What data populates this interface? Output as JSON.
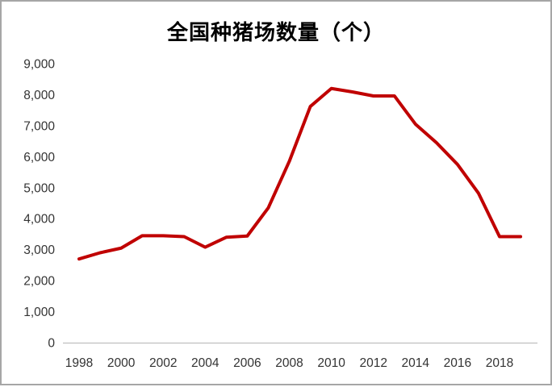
{
  "chart_data": {
    "type": "line",
    "title": "全国种猪场数量（个）",
    "x": [
      1998,
      1999,
      2000,
      2001,
      2002,
      2003,
      2004,
      2005,
      2006,
      2007,
      2008,
      2009,
      2010,
      2011,
      2012,
      2013,
      2014,
      2015,
      2016,
      2017,
      2018,
      2019
    ],
    "series": [
      {
        "name": "全国种猪场数量",
        "values": [
          2700,
          2900,
          3050,
          3450,
          3450,
          3420,
          3080,
          3400,
          3440,
          4350,
          5850,
          7620,
          8200,
          8090,
          7960,
          7960,
          7050,
          6450,
          5750,
          4820,
          3420,
          3420
        ]
      }
    ],
    "xlabel": "",
    "ylabel": "",
    "xticks": [
      1998,
      2000,
      2002,
      2004,
      2006,
      2008,
      2010,
      2012,
      2014,
      2016,
      2018
    ],
    "yticks": [
      0,
      1000,
      2000,
      3000,
      4000,
      5000,
      6000,
      7000,
      8000,
      9000
    ],
    "ylim": [
      0,
      9000
    ],
    "grid": false,
    "legend_position": "none",
    "line_color": "#C00000",
    "axis_color": "#BFBFBF",
    "tick_label_color": "#333333",
    "background_color": "#FFFFFF",
    "frame_color": "#A6A6A6"
  }
}
